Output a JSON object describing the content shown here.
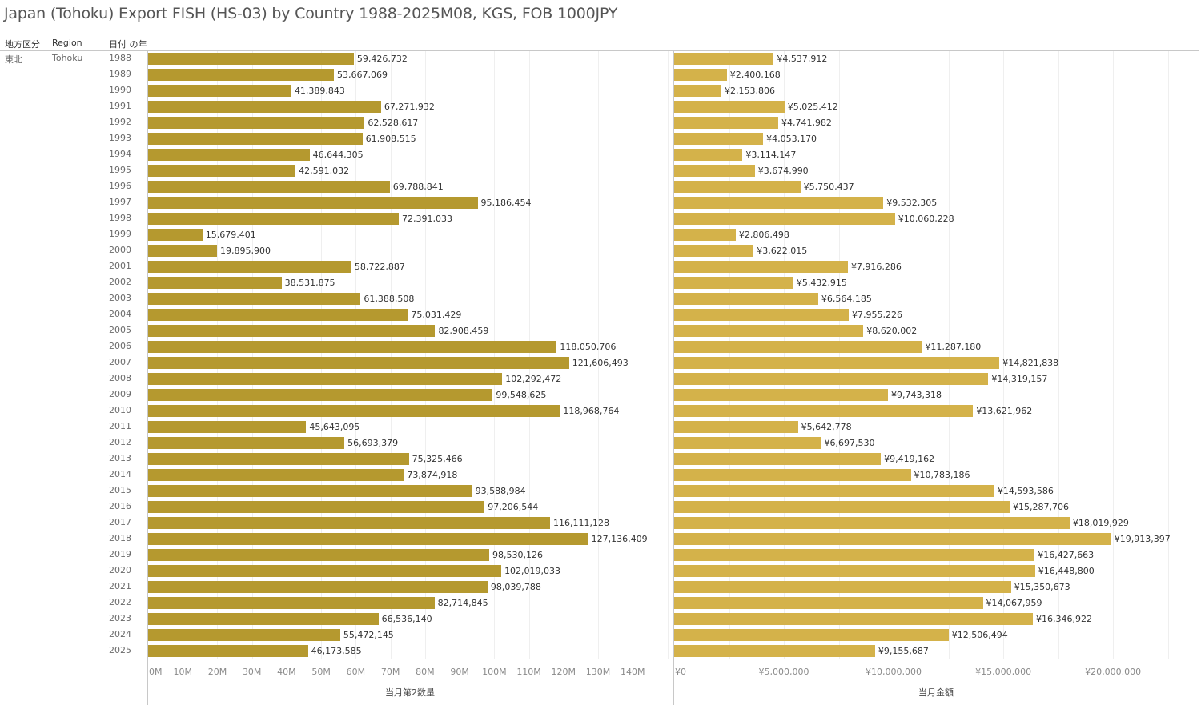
{
  "title": "Japan (Tohoku) Export FISH (HS-03) by Country 1988-2025M08, KGS, FOB 1000JPY",
  "headers": {
    "area": "地方区分",
    "region": "Region",
    "year": "日付 の年"
  },
  "dimension_values": {
    "area": "東北",
    "region": "Tohoku"
  },
  "colors": {
    "quantity_bar": "#b5992f",
    "value_bar": "#d4b24a"
  },
  "chart_data": [
    {
      "type": "bar",
      "orientation": "horizontal",
      "title": "",
      "xlabel": "当月第2数量",
      "ylabel": "日付 の年",
      "xlim": [
        0,
        151500000
      ],
      "grid": true,
      "tick_values": [
        0,
        10000000,
        20000000,
        30000000,
        40000000,
        50000000,
        60000000,
        70000000,
        80000000,
        90000000,
        100000000,
        110000000,
        120000000,
        130000000,
        140000000
      ],
      "tick_labels": [
        "0M",
        "10M",
        "20M",
        "30M",
        "40M",
        "50M",
        "60M",
        "70M",
        "80M",
        "90M",
        "100M",
        "110M",
        "120M",
        "130M",
        "140M"
      ],
      "categories": [
        "1988",
        "1989",
        "1990",
        "1991",
        "1992",
        "1993",
        "1994",
        "1995",
        "1996",
        "1997",
        "1998",
        "1999",
        "2000",
        "2001",
        "2002",
        "2003",
        "2004",
        "2005",
        "2006",
        "2007",
        "2008",
        "2009",
        "2010",
        "2011",
        "2012",
        "2013",
        "2014",
        "2015",
        "2016",
        "2017",
        "2018",
        "2019",
        "2020",
        "2021",
        "2022",
        "2023",
        "2024",
        "2025"
      ],
      "values": [
        59426732,
        53667069,
        41389843,
        67271932,
        62528617,
        61908515,
        46644305,
        42591032,
        69788841,
        95186454,
        72391033,
        15679401,
        19895900,
        58722887,
        38531875,
        61388508,
        75031429,
        82908459,
        118050706,
        121606493,
        102292472,
        99548625,
        118968764,
        45643095,
        56693379,
        75325466,
        73874918,
        93588984,
        97206544,
        116111128,
        127136409,
        98530126,
        102019033,
        98039788,
        82714845,
        66536140,
        55472145,
        46173585
      ],
      "data_labels": [
        "59,426,732",
        "53,667,069",
        "41,389,843",
        "67,271,932",
        "62,528,617",
        "61,908,515",
        "46,644,305",
        "42,591,032",
        "69,788,841",
        "95,186,454",
        "72,391,033",
        "15,679,401",
        "19,895,900",
        "58,722,887",
        "38,531,875",
        "61,388,508",
        "75,031,429",
        "82,908,459",
        "118,050,706",
        "121,606,493",
        "102,292,472",
        "99,548,625",
        "118,968,764",
        "45,643,095",
        "56,693,379",
        "75,325,466",
        "73,874,918",
        "93,588,984",
        "97,206,544",
        "116,111,128",
        "127,136,409",
        "98,530,126",
        "102,019,033",
        "98,039,788",
        "82,714,845",
        "66,536,140",
        "55,472,145",
        "46,173,585"
      ]
    },
    {
      "type": "bar",
      "orientation": "horizontal",
      "title": "",
      "xlabel": "当月金額",
      "ylabel": "日付 の年",
      "xlim": [
        0,
        23900000
      ],
      "grid": true,
      "tick_values": [
        0,
        5000000,
        10000000,
        15000000,
        20000000
      ],
      "tick_labels": [
        "¥0",
        "¥5,000,000",
        "¥10,000,000",
        "¥15,000,000",
        "¥20,000,000"
      ],
      "categories": [
        "1988",
        "1989",
        "1990",
        "1991",
        "1992",
        "1993",
        "1994",
        "1995",
        "1996",
        "1997",
        "1998",
        "1999",
        "2000",
        "2001",
        "2002",
        "2003",
        "2004",
        "2005",
        "2006",
        "2007",
        "2008",
        "2009",
        "2010",
        "2011",
        "2012",
        "2013",
        "2014",
        "2015",
        "2016",
        "2017",
        "2018",
        "2019",
        "2020",
        "2021",
        "2022",
        "2023",
        "2024",
        "2025"
      ],
      "values": [
        4537912,
        2400168,
        2153806,
        5025412,
        4741982,
        4053170,
        3114147,
        3674990,
        5750437,
        9532305,
        10060228,
        2806498,
        3622015,
        7916286,
        5432915,
        6564185,
        7955226,
        8620002,
        11287180,
        14821838,
        14319157,
        9743318,
        13621962,
        5642778,
        6697530,
        9419162,
        10783186,
        14593586,
        15287706,
        18019929,
        19913397,
        16427663,
        16448800,
        15350673,
        14067959,
        16346922,
        12506494,
        9155687
      ],
      "data_labels": [
        "¥4,537,912",
        "¥2,400,168",
        "¥2,153,806",
        "¥5,025,412",
        "¥4,741,982",
        "¥4,053,170",
        "¥3,114,147",
        "¥3,674,990",
        "¥5,750,437",
        "¥9,532,305",
        "¥10,060,228",
        "¥2,806,498",
        "¥3,622,015",
        "¥7,916,286",
        "¥5,432,915",
        "¥6,564,185",
        "¥7,955,226",
        "¥8,620,002",
        "¥11,287,180",
        "¥14,821,838",
        "¥14,319,157",
        "¥9,743,318",
        "¥13,621,962",
        "¥5,642,778",
        "¥6,697,530",
        "¥9,419,162",
        "¥10,783,186",
        "¥14,593,586",
        "¥15,287,706",
        "¥18,019,929",
        "¥19,913,397",
        "¥16,427,663",
        "¥16,448,800",
        "¥15,350,673",
        "¥14,067,959",
        "¥16,346,922",
        "¥12,506,494",
        "¥9,155,687"
      ]
    }
  ]
}
